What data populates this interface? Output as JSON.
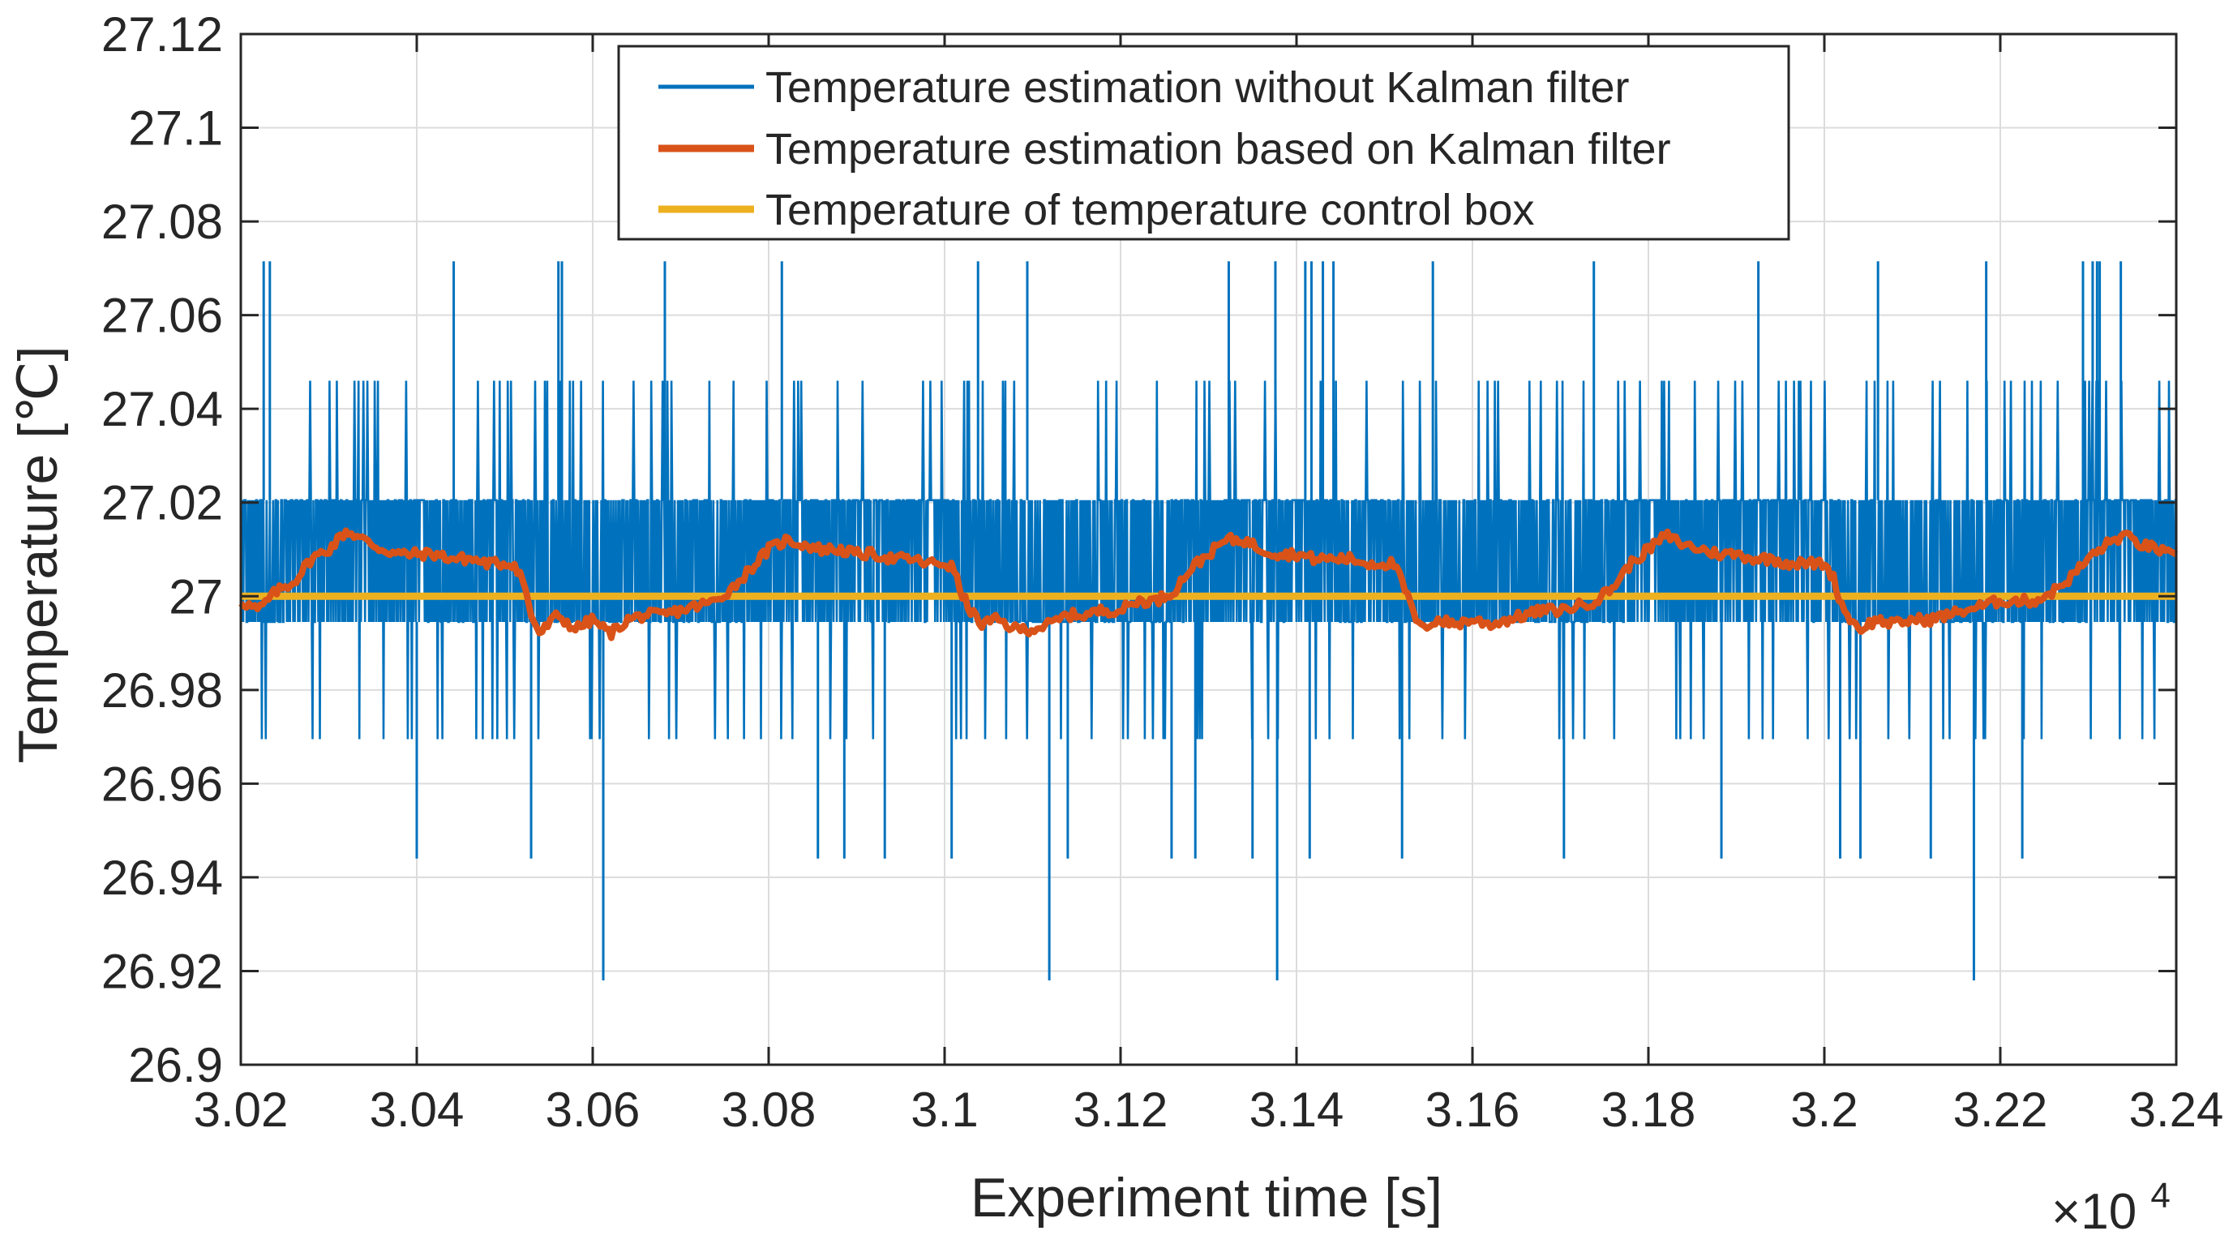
{
  "chart_data": {
    "type": "line",
    "title": "",
    "xlabel": "Experiment time [s]",
    "ylabel": "Temperature [℃]",
    "x_multiplier_prefix": "×10",
    "x_multiplier_exponent": "4",
    "xlim": [
      3.02,
      3.24
    ],
    "ylim": [
      26.9,
      27.12
    ],
    "grid": true,
    "legend_position": "top-center",
    "x_ticks": [
      "3.02",
      "3.04",
      "3.06",
      "3.08",
      "3.1",
      "3.12",
      "3.14",
      "3.16",
      "3.18",
      "3.2",
      "3.22",
      "3.24"
    ],
    "y_ticks": [
      "26.9",
      "26.92",
      "26.94",
      "26.96",
      "26.98",
      "27",
      "27.02",
      "27.04",
      "27.06",
      "27.08",
      "27.1",
      "27.12"
    ],
    "x_tick_values": [
      3.02,
      3.04,
      3.06,
      3.08,
      3.1,
      3.12,
      3.14,
      3.16,
      3.18,
      3.2,
      3.22,
      3.24
    ],
    "y_tick_values": [
      26.9,
      26.92,
      26.94,
      26.96,
      26.98,
      27.0,
      27.02,
      27.04,
      27.06,
      27.08,
      27.1,
      27.12
    ],
    "measurement_levels": [
      26.918,
      26.944,
      26.9695,
      26.9945,
      27.0205,
      27.046,
      27.0715
    ],
    "series": [
      {
        "name": "Temperature estimation without Kalman filter",
        "color": "#0072BD",
        "style": "noisy-quantized",
        "spikes": [
          {
            "x": 3.0226,
            "y": 27.0715
          },
          {
            "x": 3.0233,
            "y": 27.0715
          },
          {
            "x": 3.0442,
            "y": 27.0715
          },
          {
            "x": 3.0561,
            "y": 27.0715
          },
          {
            "x": 3.0565,
            "y": 27.0715
          },
          {
            "x": 3.0682,
            "y": 27.0715
          },
          {
            "x": 3.0815,
            "y": 27.0715
          },
          {
            "x": 3.1038,
            "y": 27.0715
          },
          {
            "x": 3.1094,
            "y": 27.0715
          },
          {
            "x": 3.1323,
            "y": 27.0715
          },
          {
            "x": 3.1376,
            "y": 27.0715
          },
          {
            "x": 3.141,
            "y": 27.0715
          },
          {
            "x": 3.1417,
            "y": 27.0715
          },
          {
            "x": 3.143,
            "y": 27.0715
          },
          {
            "x": 3.1442,
            "y": 27.0715
          },
          {
            "x": 3.1555,
            "y": 27.0715
          },
          {
            "x": 3.1738,
            "y": 27.0715
          },
          {
            "x": 3.1925,
            "y": 27.0715
          },
          {
            "x": 3.2061,
            "y": 27.0715
          },
          {
            "x": 3.2184,
            "y": 27.0715
          },
          {
            "x": 3.2305,
            "y": 27.0715
          },
          {
            "x": 3.231,
            "y": 27.0715
          },
          {
            "x": 3.2313,
            "y": 27.0715
          },
          {
            "x": 3.2337,
            "y": 27.0715
          },
          {
            "x": 3.2294,
            "y": 27.0715
          },
          {
            "x": 3.04,
            "y": 26.944
          },
          {
            "x": 3.053,
            "y": 26.944
          },
          {
            "x": 3.0856,
            "y": 26.944
          },
          {
            "x": 3.0886,
            "y": 26.944
          },
          {
            "x": 3.0932,
            "y": 26.944
          },
          {
            "x": 3.1008,
            "y": 26.944
          },
          {
            "x": 3.114,
            "y": 26.944
          },
          {
            "x": 3.1258,
            "y": 26.944
          },
          {
            "x": 3.1285,
            "y": 26.944
          },
          {
            "x": 3.135,
            "y": 26.944
          },
          {
            "x": 3.1415,
            "y": 26.944
          },
          {
            "x": 3.152,
            "y": 26.944
          },
          {
            "x": 3.1704,
            "y": 26.944
          },
          {
            "x": 3.1883,
            "y": 26.944
          },
          {
            "x": 3.2018,
            "y": 26.944
          },
          {
            "x": 3.2041,
            "y": 26.944
          },
          {
            "x": 3.2121,
            "y": 26.944
          },
          {
            "x": 3.2225,
            "y": 26.944
          },
          {
            "x": 3.0612,
            "y": 26.918
          },
          {
            "x": 3.1119,
            "y": 26.918
          },
          {
            "x": 3.1378,
            "y": 26.918
          },
          {
            "x": 3.217,
            "y": 26.918
          }
        ]
      },
      {
        "name": "Temperature estimation based on Kalman filter",
        "color": "#D95319",
        "style": "smoothed",
        "points": [
          [
            3.02,
            26.999
          ],
          [
            3.022,
            26.997
          ],
          [
            3.024,
            27.001
          ],
          [
            3.026,
            27.003
          ],
          [
            3.028,
            27.008
          ],
          [
            3.03,
            27.01
          ],
          [
            3.032,
            27.014
          ],
          [
            3.034,
            27.012
          ],
          [
            3.036,
            27.01
          ],
          [
            3.038,
            27.009
          ],
          [
            3.04,
            27.009
          ],
          [
            3.042,
            27.009
          ],
          [
            3.044,
            27.008
          ],
          [
            3.046,
            27.008
          ],
          [
            3.048,
            27.007
          ],
          [
            3.05,
            27.007
          ],
          [
            3.051,
            27.007
          ],
          [
            3.052,
            27.004
          ],
          [
            3.053,
            26.996
          ],
          [
            3.054,
            26.992
          ],
          [
            3.056,
            26.996
          ],
          [
            3.058,
            26.993
          ],
          [
            3.06,
            26.995
          ],
          [
            3.062,
            26.992
          ],
          [
            3.064,
            26.995
          ],
          [
            3.066,
            26.996
          ],
          [
            3.068,
            26.996
          ],
          [
            3.07,
            26.997
          ],
          [
            3.072,
            26.998
          ],
          [
            3.074,
            26.999
          ],
          [
            3.076,
            27.002
          ],
          [
            3.078,
            27.006
          ],
          [
            3.08,
            27.01
          ],
          [
            3.082,
            27.012
          ],
          [
            3.084,
            27.011
          ],
          [
            3.086,
            27.01
          ],
          [
            3.088,
            27.01
          ],
          [
            3.09,
            27.009
          ],
          [
            3.092,
            27.009
          ],
          [
            3.094,
            27.008
          ],
          [
            3.096,
            27.008
          ],
          [
            3.098,
            27.007
          ],
          [
            3.1,
            27.007
          ],
          [
            3.101,
            27.006
          ],
          [
            3.102,
            27.0
          ],
          [
            3.103,
            26.997
          ],
          [
            3.104,
            26.994
          ],
          [
            3.106,
            26.995
          ],
          [
            3.108,
            26.993
          ],
          [
            3.11,
            26.993
          ],
          [
            3.112,
            26.994
          ],
          [
            3.114,
            26.996
          ],
          [
            3.116,
            26.996
          ],
          [
            3.118,
            26.997
          ],
          [
            3.12,
            26.997
          ],
          [
            3.122,
            26.999
          ],
          [
            3.124,
            26.999
          ],
          [
            3.126,
            27.001
          ],
          [
            3.128,
            27.006
          ],
          [
            3.13,
            27.009
          ],
          [
            3.132,
            27.012
          ],
          [
            3.134,
            27.012
          ],
          [
            3.136,
            27.01
          ],
          [
            3.138,
            27.009
          ],
          [
            3.14,
            27.009
          ],
          [
            3.142,
            27.008
          ],
          [
            3.144,
            27.008
          ],
          [
            3.146,
            27.008
          ],
          [
            3.148,
            27.007
          ],
          [
            3.15,
            27.007
          ],
          [
            3.151,
            27.007
          ],
          [
            3.152,
            27.003
          ],
          [
            3.153,
            26.998
          ],
          [
            3.154,
            26.993
          ],
          [
            3.156,
            26.995
          ],
          [
            3.158,
            26.994
          ],
          [
            3.16,
            26.995
          ],
          [
            3.162,
            26.994
          ],
          [
            3.164,
            26.995
          ],
          [
            3.166,
            26.996
          ],
          [
            3.168,
            26.997
          ],
          [
            3.17,
            26.997
          ],
          [
            3.172,
            26.998
          ],
          [
            3.174,
            26.999
          ],
          [
            3.176,
            27.002
          ],
          [
            3.178,
            27.007
          ],
          [
            3.18,
            27.01
          ],
          [
            3.182,
            27.013
          ],
          [
            3.184,
            27.011
          ],
          [
            3.186,
            27.01
          ],
          [
            3.188,
            27.009
          ],
          [
            3.19,
            27.009
          ],
          [
            3.192,
            27.008
          ],
          [
            3.194,
            27.008
          ],
          [
            3.196,
            27.007
          ],
          [
            3.198,
            27.007
          ],
          [
            3.2,
            27.007
          ],
          [
            3.201,
            27.004
          ],
          [
            3.202,
            26.998
          ],
          [
            3.203,
            26.995
          ],
          [
            3.204,
            26.993
          ],
          [
            3.206,
            26.995
          ],
          [
            3.208,
            26.994
          ],
          [
            3.21,
            26.995
          ],
          [
            3.212,
            26.995
          ],
          [
            3.214,
            26.996
          ],
          [
            3.216,
            26.997
          ],
          [
            3.218,
            26.998
          ],
          [
            3.22,
            26.999
          ],
          [
            3.222,
            26.999
          ],
          [
            3.224,
            26.999
          ],
          [
            3.226,
            27.001
          ],
          [
            3.228,
            27.004
          ],
          [
            3.23,
            27.008
          ],
          [
            3.232,
            27.011
          ],
          [
            3.234,
            27.013
          ],
          [
            3.236,
            27.011
          ],
          [
            3.238,
            27.01
          ],
          [
            3.24,
            27.008
          ]
        ]
      },
      {
        "name": "Temperature of temperature control box",
        "color": "#EDB120",
        "style": "constant",
        "value": 27.0
      }
    ]
  }
}
